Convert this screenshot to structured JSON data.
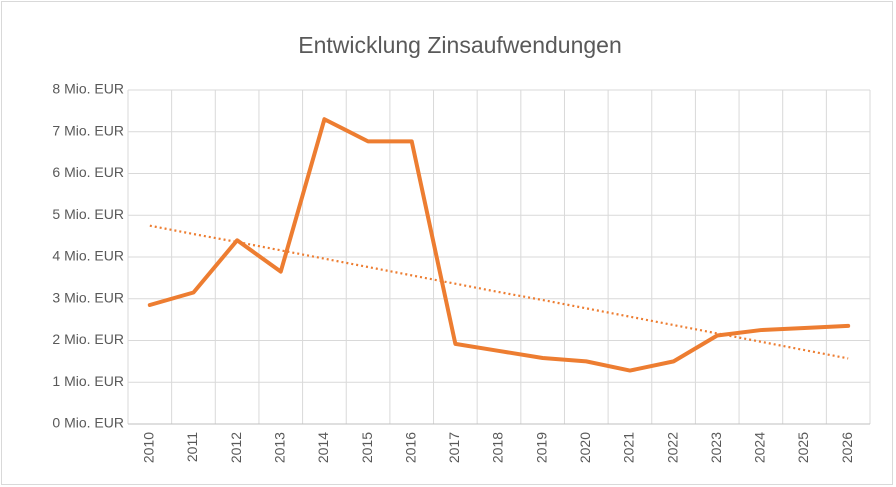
{
  "chart_data": {
    "type": "line",
    "title": "Entwicklung Zinsaufwendungen",
    "categories": [
      "2010",
      "2011",
      "2012",
      "2013",
      "2014",
      "2015",
      "2016",
      "2017",
      "2018",
      "2019",
      "2020",
      "2021",
      "2022",
      "2023",
      "2024",
      "2025",
      "2026"
    ],
    "series": [
      {
        "color": "#ed7d31",
        "style": "solid",
        "values": [
          2.85,
          3.15,
          4.4,
          3.65,
          7.3,
          6.77,
          6.77,
          1.92,
          1.75,
          1.58,
          1.5,
          1.28,
          1.5,
          2.12,
          2.25,
          2.3,
          2.35
        ]
      },
      {
        "color": "#ed7d31",
        "style": "dotted",
        "values": [
          4.75,
          4.55,
          4.36,
          4.16,
          3.96,
          3.76,
          3.56,
          3.36,
          3.16,
          2.97,
          2.77,
          2.57,
          2.37,
          2.17,
          1.97,
          1.77,
          1.57
        ]
      }
    ],
    "ylim": [
      0,
      8
    ],
    "yticks": [
      {
        "value": 0,
        "label": "0 Mio. EUR"
      },
      {
        "value": 1,
        "label": "1 Mio. EUR"
      },
      {
        "value": 2,
        "label": "2 Mio. EUR"
      },
      {
        "value": 3,
        "label": "3 Mio. EUR"
      },
      {
        "value": 4,
        "label": "4 Mio. EUR"
      },
      {
        "value": 5,
        "label": "5 Mio. EUR"
      },
      {
        "value": 6,
        "label": "6 Mio. EUR"
      },
      {
        "value": 7,
        "label": "7 Mio. EUR"
      },
      {
        "value": 8,
        "label": "8 Mio. EUR"
      }
    ],
    "grid": true
  }
}
